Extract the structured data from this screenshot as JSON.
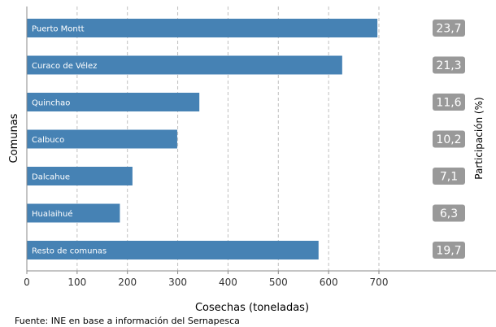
{
  "chart_data": {
    "type": "bar",
    "orientation": "horizontal",
    "categories": [
      "Puerto Montt",
      "Curaco de Vélez",
      "Quinchao",
      "Calbuco",
      "Dalcahue",
      "Hualaihué",
      "Resto de comunas"
    ],
    "values": [
      697,
      627,
      343,
      299,
      210,
      185,
      580
    ],
    "participation": [
      "23,7",
      "21,3",
      "11,6",
      "10,2",
      "7,1",
      "6,3",
      "19,7"
    ],
    "xlabel": "Cosechas (toneladas)",
    "ylabel": "Comunas",
    "secondary_ylabel": "Participación (%)",
    "xlim": [
      0,
      700
    ],
    "xticks": [
      0,
      100,
      200,
      300,
      400,
      500,
      600,
      700
    ],
    "grid": "vertical dashed",
    "bar_color": "#4682b4",
    "badge_color": "#999999"
  },
  "source": "Fuente: INE en base a información del Sernapesca"
}
